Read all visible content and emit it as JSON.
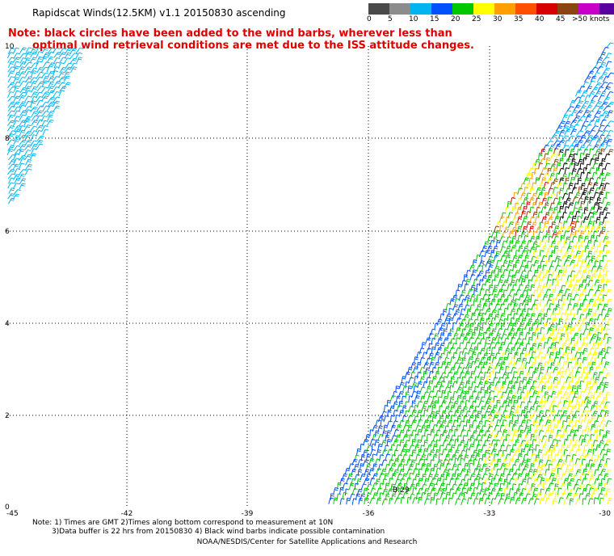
{
  "title": "Rapidscat Winds(12.5KM) v1.1 20150830 ascending",
  "note": {
    "line1": "Note: black circles have been added to the wind barbs, wherever less than",
    "line2": "optimal wind retrieval conditions are met due to the ISS attitude changes."
  },
  "legend": {
    "unit": ">50 knots",
    "labels": [
      "0",
      "5",
      "10",
      "15",
      "20",
      "25",
      "30",
      "35",
      "40",
      "45"
    ],
    "colors": [
      "#4a4a4a",
      "#8c8c8c",
      "#00b4f0",
      "#0050ff",
      "#00c800",
      "#ffff00",
      "#ffa000",
      "#ff5000",
      "#d80000",
      "#8b4513",
      "#c800c8",
      "#5a00a0"
    ]
  },
  "axes": {
    "x_labels": [
      "-45",
      "-42",
      "-39",
      "-36",
      "-33",
      "-30"
    ],
    "y_labels": [
      "10",
      "8",
      "6",
      "4",
      "2",
      "0"
    ]
  },
  "swath_label": "B:29",
  "footnote": {
    "line1": "Note: 1) Times are GMT 2)Times along bottom correspond to measurement at 10N",
    "line2": "3)Data buffer is 22 hrs from 20150830 4) Black wind barbs indicate possible contamination"
  },
  "credit": "NOAA/NESDIS/Center for Satellite Applications and Research"
}
